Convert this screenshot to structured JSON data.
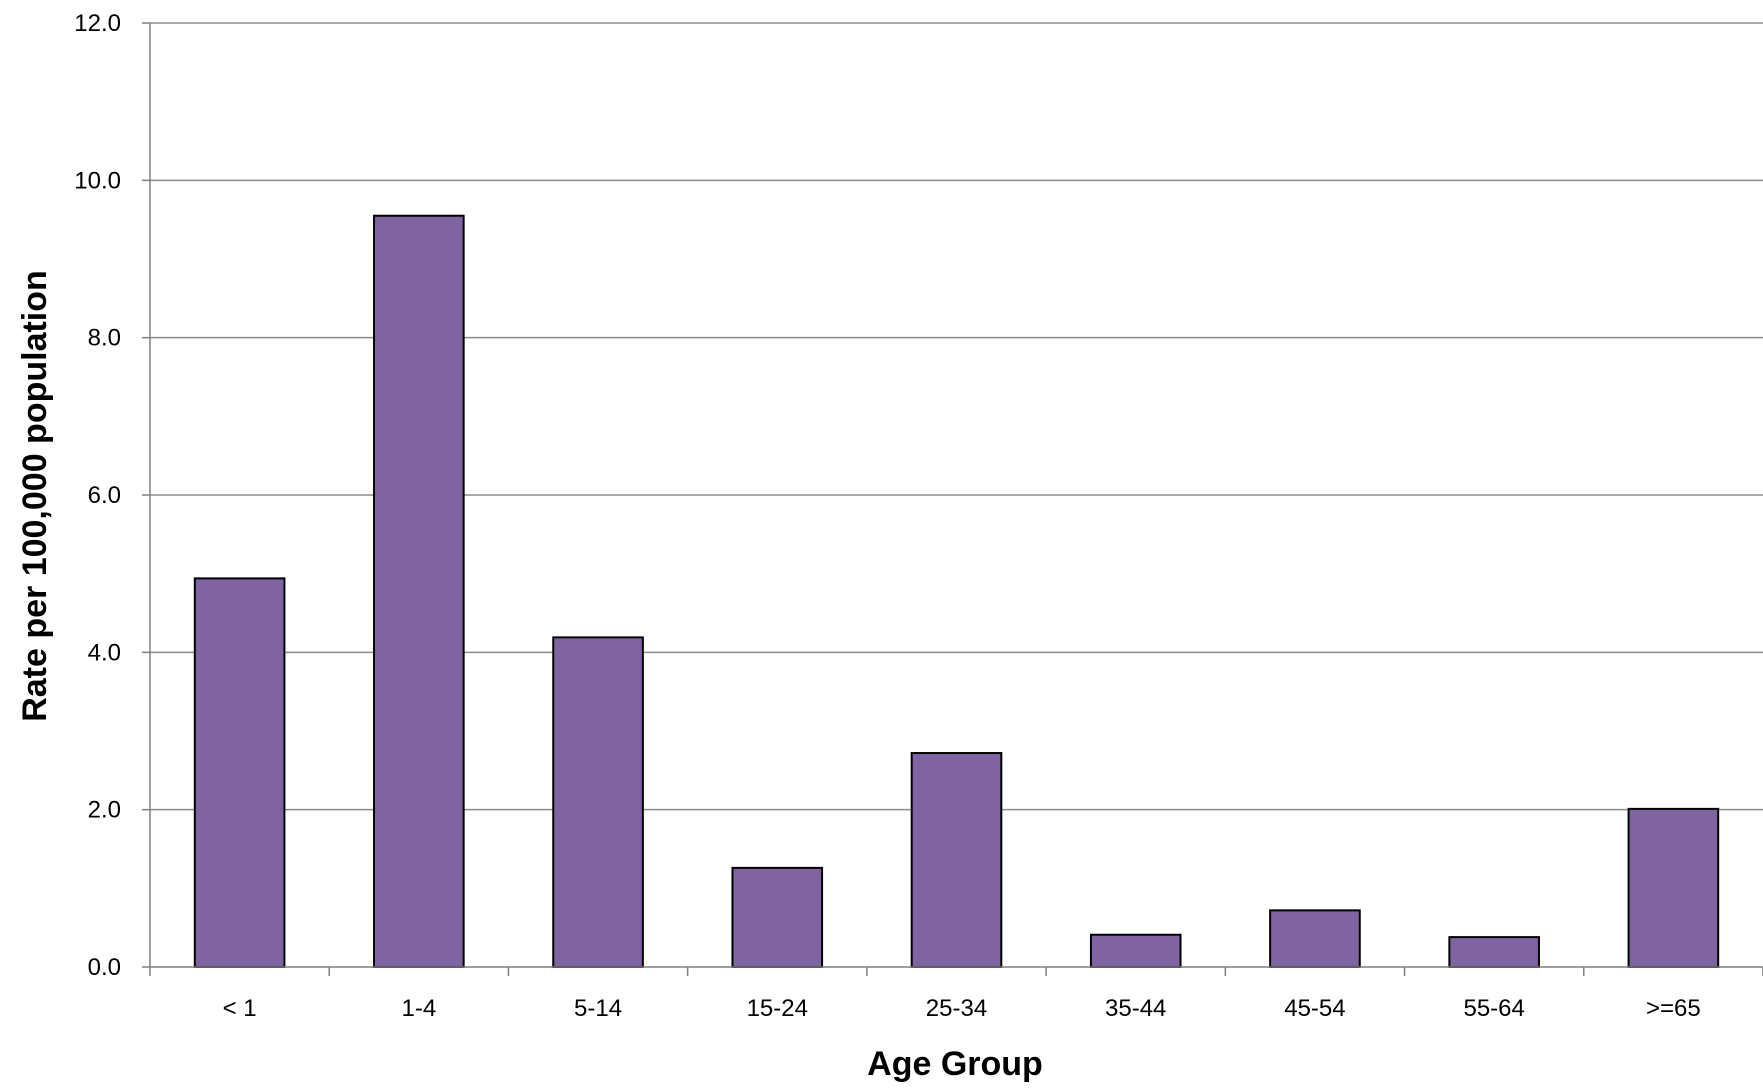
{
  "chart_data": {
    "type": "bar",
    "title": "",
    "xlabel": "Age Group",
    "ylabel": "Rate per 100,000 population",
    "categories": [
      "< 1",
      "1-4",
      "5-14",
      "15-24",
      "25-34",
      "35-44",
      "45-54",
      "55-64",
      ">=65"
    ],
    "values": [
      4.94,
      9.55,
      4.19,
      1.26,
      2.72,
      0.41,
      0.72,
      0.38,
      2.01
    ],
    "ylim": [
      0,
      12
    ],
    "yticks": [
      "0.0",
      "2.0",
      "4.0",
      "6.0",
      "8.0",
      "10.0",
      "12.0"
    ],
    "grid": true,
    "legend": "none",
    "colors": {
      "bar_fill": "#8064A2",
      "bar_stroke": "#000000",
      "grid": "#8c8c8c",
      "axis": "#7f7f7f"
    }
  }
}
